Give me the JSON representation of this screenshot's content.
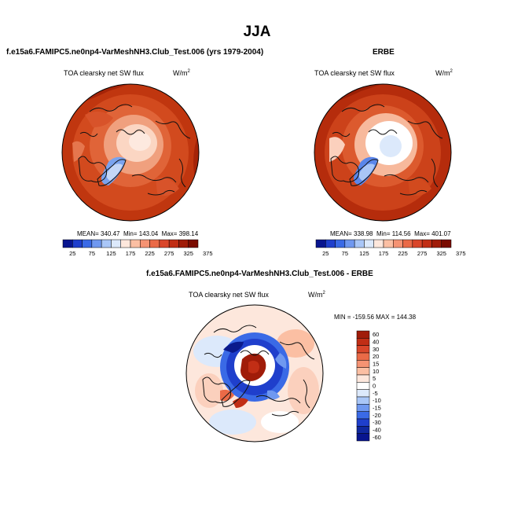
{
  "title": "JJA",
  "panels": [
    {
      "id": "model",
      "header": "f.e15a6.FAMIPC5.ne0np4-VarMeshNH3.Club_Test.006 (yrs 1979-2004)",
      "variable": "TOA clearsky net SW flux",
      "units": "W/m",
      "units_exp": "2",
      "stats": {
        "mean": "340.47",
        "min": "143.04",
        "max": "398.14"
      },
      "stats_text": {
        "mean_label": "MEAN=",
        "min_label": "Min=",
        "max_label": "Max="
      }
    },
    {
      "id": "obs",
      "header": "ERBE",
      "variable": "TOA clearsky net SW flux",
      "units": "W/m",
      "units_exp": "2",
      "stats": {
        "mean": "338.98",
        "min": "114.56",
        "max": "401.07"
      },
      "stats_text": {
        "mean_label": "MEAN=",
        "min_label": "Min=",
        "max_label": "Max="
      }
    },
    {
      "id": "diff",
      "header": "f.e15a6.FAMIPC5.ne0np4-VarMeshNH3.Club_Test.006 - ERBE",
      "variable": "TOA clearsky net SW flux",
      "units": "W/m",
      "units_exp": "2",
      "minmax_text": "MIN = -159.56 MAX = 144.38"
    }
  ],
  "chart_data": [
    {
      "type": "heatmap",
      "projection": "north polar stereographic",
      "title": "TOA clearsky net SW flux",
      "units": "W/m2",
      "colorbar": {
        "orientation": "horizontal",
        "ticks": [
          "25",
          "75",
          "125",
          "175",
          "225",
          "275",
          "325",
          "375"
        ],
        "colors": [
          "#08158f",
          "#1f3fcc",
          "#3a6ae6",
          "#6f98f0",
          "#a9c6f7",
          "#dce9fb",
          "#fde7dc",
          "#fbbfa3",
          "#f59373",
          "#ea6a47",
          "#d9462a",
          "#c12e15",
          "#a01c09",
          "#7a0b00"
        ]
      },
      "stats": {
        "mean": 340.47,
        "min": 143.04,
        "max": 398.14
      }
    },
    {
      "type": "heatmap",
      "projection": "north polar stereographic",
      "title": "TOA clearsky net SW flux",
      "units": "W/m2",
      "colorbar": {
        "orientation": "horizontal",
        "ticks": [
          "25",
          "75",
          "125",
          "175",
          "225",
          "275",
          "325",
          "375"
        ],
        "colors": [
          "#08158f",
          "#1f3fcc",
          "#3a6ae6",
          "#6f98f0",
          "#a9c6f7",
          "#dce9fb",
          "#fde7dc",
          "#fbbfa3",
          "#f59373",
          "#ea6a47",
          "#d9462a",
          "#c12e15",
          "#a01c09",
          "#7a0b00"
        ]
      },
      "stats": {
        "mean": 338.98,
        "min": 114.56,
        "max": 401.07
      }
    },
    {
      "type": "heatmap",
      "projection": "north polar stereographic",
      "title": "TOA clearsky net SW flux",
      "units": "W/m2",
      "colorbar": {
        "orientation": "vertical",
        "ticks": [
          "60",
          "40",
          "30",
          "20",
          "15",
          "10",
          "5",
          "0",
          "-5",
          "-10",
          "-15",
          "-20",
          "-30",
          "-40",
          "-60"
        ],
        "colors": [
          "#a01c09",
          "#c12e15",
          "#d9462a",
          "#ea6a47",
          "#f59373",
          "#fbbfa3",
          "#fde7dc",
          "#ffffff",
          "#dce9fb",
          "#a9c6f7",
          "#6f98f0",
          "#3a6ae6",
          "#1f3fcc",
          "#10289f",
          "#08158f"
        ]
      },
      "stats": {
        "min": -159.56,
        "max": 144.38
      }
    }
  ],
  "colors": {
    "dark_red": "#9c1f05",
    "mid_red": "#c83a14",
    "light_red": "#e8714a",
    "pink": "#fbd0bd",
    "white": "#ffffff",
    "light_blue": "#b8d0f5",
    "blue": "#3a6ae6",
    "dark_blue": "#0a1a8c"
  }
}
